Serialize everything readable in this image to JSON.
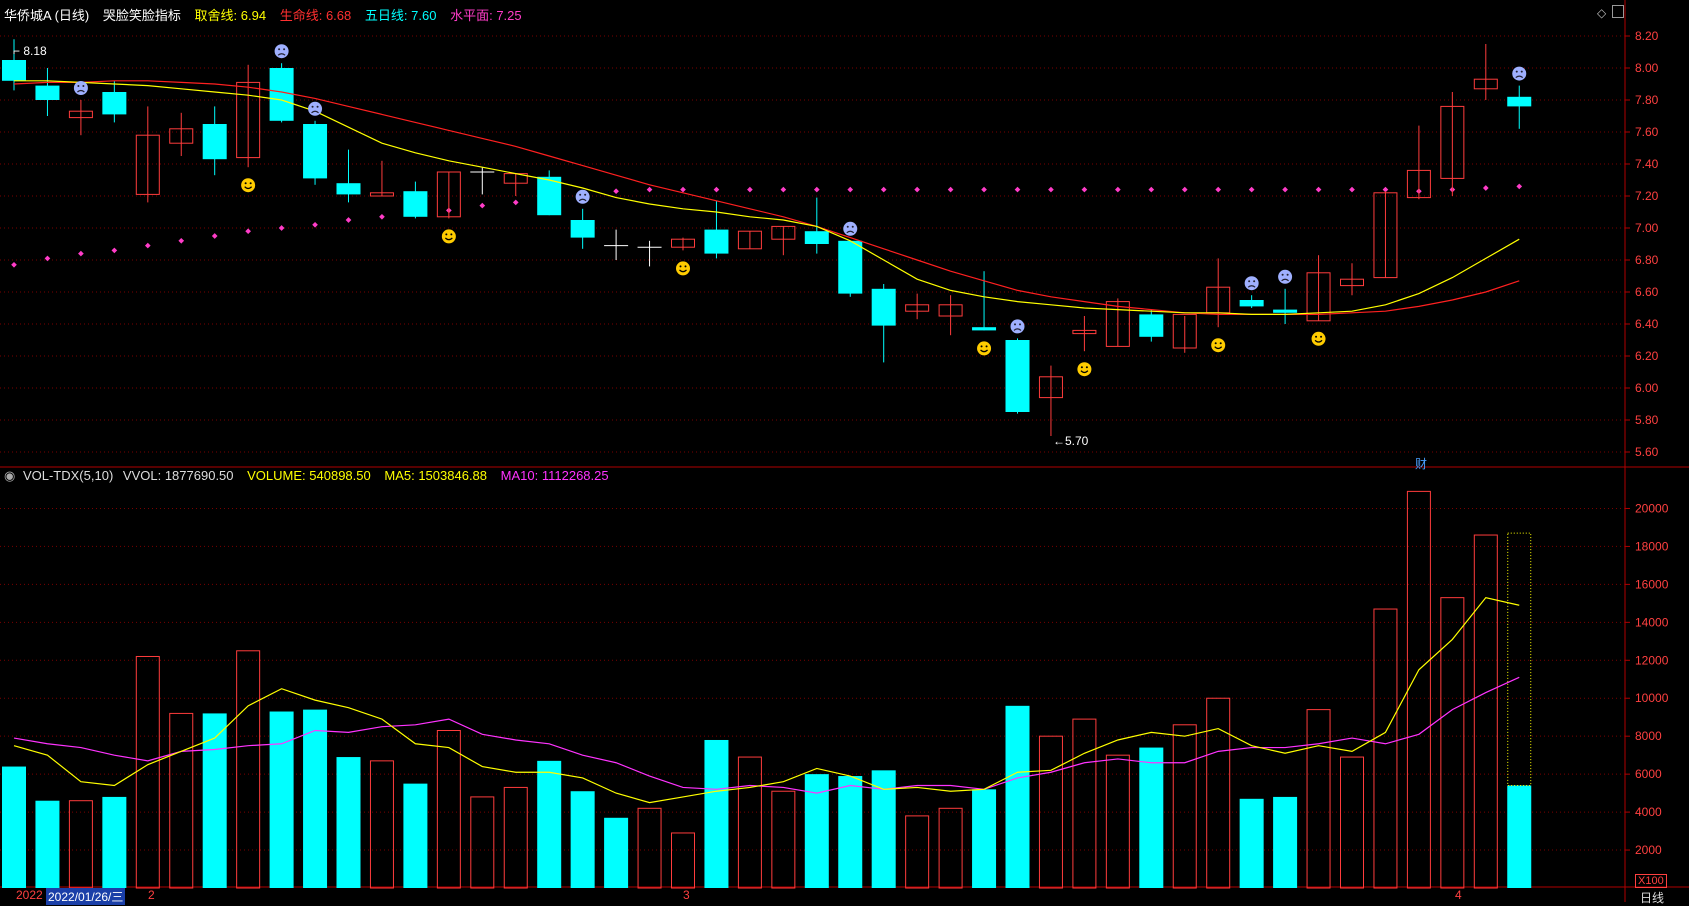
{
  "header": {
    "title": "华侨城A (日线)",
    "indicator_name": "哭脸笑脸指标",
    "qu_she_label": "取舍线:",
    "qu_she_value": "6.94",
    "sheng_ming_label": "生命线:",
    "sheng_ming_value": "6.68",
    "wu_ri_label": "五日线:",
    "wu_ri_value": "7.60",
    "shui_ping_label": "水平面:",
    "shui_ping_value": "7.25"
  },
  "vol_header": {
    "name": "VOL-TDX(5,10)",
    "vvol_label": "VVOL:",
    "vvol_value": "1877690.50",
    "volume_label": "VOLUME:",
    "volume_value": "540898.50",
    "ma5_label": "MA5:",
    "ma5_value": "1503846.88",
    "ma10_label": "MA10:",
    "ma10_value": "1112268.25"
  },
  "annotations": {
    "high_label": "8.18",
    "low_label": "←5.70",
    "cai_badge": "财",
    "x100_badge": "X100",
    "period_label": "日线"
  },
  "date_strip": {
    "start_text": "2022",
    "cursor_date": "2022/01/26/三",
    "month_2": "2",
    "month_3": "3",
    "month_4": "4"
  },
  "colors": {
    "up": "#ff3c3c",
    "down": "#00ffff",
    "ma_yellow": "#ffff00",
    "ma_red": "#ff2020",
    "dots": "#ff3cc8",
    "ma10_vol": "#ff33ff",
    "grid": "#7a0000"
  },
  "chart_data": [
    {
      "type": "candlestick",
      "ylim": [
        5.5,
        8.3
      ],
      "y_ticks": [
        "8.20",
        "8.00",
        "7.80",
        "7.60",
        "7.40",
        "7.20",
        "7.00",
        "6.80",
        "6.60",
        "6.40",
        "6.20",
        "6.00",
        "5.80",
        "5.60"
      ],
      "candles": [
        {
          "o": 8.05,
          "h": 8.18,
          "l": 7.86,
          "c": 7.92
        },
        {
          "o": 7.89,
          "h": 8.0,
          "l": 7.7,
          "c": 7.8
        },
        {
          "o": 7.69,
          "h": 7.8,
          "l": 7.58,
          "c": 7.73
        },
        {
          "o": 7.85,
          "h": 7.92,
          "l": 7.66,
          "c": 7.71
        },
        {
          "o": 7.21,
          "h": 7.76,
          "l": 7.16,
          "c": 7.58
        },
        {
          "o": 7.53,
          "h": 7.72,
          "l": 7.45,
          "c": 7.62
        },
        {
          "o": 7.65,
          "h": 7.76,
          "l": 7.33,
          "c": 7.43
        },
        {
          "o": 7.44,
          "h": 8.02,
          "l": 7.38,
          "c": 7.91
        },
        {
          "o": 8.0,
          "h": 8.03,
          "l": 7.66,
          "c": 7.67
        },
        {
          "o": 7.65,
          "h": 7.67,
          "l": 7.27,
          "c": 7.31
        },
        {
          "o": 7.28,
          "h": 7.49,
          "l": 7.16,
          "c": 7.21
        },
        {
          "o": 7.2,
          "h": 7.42,
          "l": 7.2,
          "c": 7.22
        },
        {
          "o": 7.23,
          "h": 7.29,
          "l": 7.06,
          "c": 7.07
        },
        {
          "o": 7.07,
          "h": 7.35,
          "l": 7.06,
          "c": 7.35
        },
        {
          "o": 7.35,
          "h": 7.38,
          "l": 7.21,
          "c": 7.35
        },
        {
          "o": 7.28,
          "h": 7.34,
          "l": 7.2,
          "c": 7.34
        },
        {
          "o": 7.32,
          "h": 7.36,
          "l": 7.08,
          "c": 7.08
        },
        {
          "o": 7.05,
          "h": 7.12,
          "l": 6.87,
          "c": 6.94
        },
        {
          "o": 6.89,
          "h": 6.99,
          "l": 6.8,
          "c": 6.89
        },
        {
          "o": 6.88,
          "h": 6.92,
          "l": 6.76,
          "c": 6.88
        },
        {
          "o": 6.88,
          "h": 6.94,
          "l": 6.86,
          "c": 6.93
        },
        {
          "o": 6.99,
          "h": 7.17,
          "l": 6.81,
          "c": 6.84
        },
        {
          "o": 6.87,
          "h": 6.98,
          "l": 6.87,
          "c": 6.98
        },
        {
          "o": 6.93,
          "h": 7.01,
          "l": 6.83,
          "c": 7.01
        },
        {
          "o": 6.98,
          "h": 7.19,
          "l": 6.84,
          "c": 6.9
        },
        {
          "o": 6.92,
          "h": 6.92,
          "l": 6.57,
          "c": 6.59
        },
        {
          "o": 6.62,
          "h": 6.65,
          "l": 6.16,
          "c": 6.39
        },
        {
          "o": 6.48,
          "h": 6.59,
          "l": 6.43,
          "c": 6.52
        },
        {
          "o": 6.45,
          "h": 6.58,
          "l": 6.33,
          "c": 6.52
        },
        {
          "o": 6.38,
          "h": 6.73,
          "l": 6.36,
          "c": 6.36
        },
        {
          "o": 6.3,
          "h": 6.31,
          "l": 5.84,
          "c": 5.85
        },
        {
          "o": 5.94,
          "h": 6.14,
          "l": 5.7,
          "c": 6.07
        },
        {
          "o": 6.34,
          "h": 6.45,
          "l": 6.23,
          "c": 6.36
        },
        {
          "o": 6.26,
          "h": 6.56,
          "l": 6.26,
          "c": 6.54
        },
        {
          "o": 6.46,
          "h": 6.49,
          "l": 6.29,
          "c": 6.32
        },
        {
          "o": 6.25,
          "h": 6.45,
          "l": 6.22,
          "c": 6.46
        },
        {
          "o": 6.47,
          "h": 6.81,
          "l": 6.38,
          "c": 6.63
        },
        {
          "o": 6.55,
          "h": 6.58,
          "l": 6.5,
          "c": 6.51
        },
        {
          "o": 6.49,
          "h": 6.62,
          "l": 6.4,
          "c": 6.47
        },
        {
          "o": 6.42,
          "h": 6.83,
          "l": 6.42,
          "c": 6.72
        },
        {
          "o": 6.64,
          "h": 6.78,
          "l": 6.58,
          "c": 6.68
        },
        {
          "o": 6.69,
          "h": 7.23,
          "l": 6.69,
          "c": 7.22
        },
        {
          "o": 7.19,
          "h": 7.64,
          "l": 7.18,
          "c": 7.36
        },
        {
          "o": 7.31,
          "h": 7.85,
          "l": 7.2,
          "c": 7.76
        },
        {
          "o": 7.87,
          "h": 8.15,
          "l": 7.8,
          "c": 7.93
        },
        {
          "o": 7.82,
          "h": 7.89,
          "l": 7.62,
          "c": 7.76
        }
      ],
      "ma_yellow": [
        7.92,
        7.92,
        7.91,
        7.9,
        7.89,
        7.87,
        7.85,
        7.83,
        7.8,
        7.73,
        7.63,
        7.53,
        7.47,
        7.42,
        7.38,
        7.34,
        7.3,
        7.25,
        7.19,
        7.15,
        7.12,
        7.1,
        7.07,
        7.05,
        7.01,
        6.92,
        6.8,
        6.68,
        6.61,
        6.57,
        6.54,
        6.52,
        6.5,
        6.49,
        6.48,
        6.47,
        6.47,
        6.46,
        6.46,
        6.47,
        6.48,
        6.52,
        6.59,
        6.69,
        6.81,
        6.93
      ],
      "ma_red": [
        7.9,
        7.91,
        7.91,
        7.92,
        7.92,
        7.91,
        7.9,
        7.88,
        7.85,
        7.81,
        7.76,
        7.71,
        7.66,
        7.61,
        7.56,
        7.51,
        7.45,
        7.39,
        7.33,
        7.27,
        7.22,
        7.17,
        7.12,
        7.07,
        7.01,
        6.94,
        6.87,
        6.8,
        6.73,
        6.67,
        6.61,
        6.57,
        6.54,
        6.51,
        6.49,
        6.47,
        6.46,
        6.46,
        6.46,
        6.46,
        6.47,
        6.48,
        6.51,
        6.55,
        6.6,
        6.67
      ],
      "dots": [
        6.77,
        6.81,
        6.84,
        6.86,
        6.89,
        6.92,
        6.95,
        6.98,
        7.0,
        7.02,
        7.05,
        7.07,
        7.09,
        7.11,
        7.14,
        7.16,
        7.19,
        7.21,
        7.23,
        7.24,
        7.24,
        7.24,
        7.24,
        7.24,
        7.24,
        7.24,
        7.24,
        7.24,
        7.24,
        7.24,
        7.24,
        7.24,
        7.24,
        7.24,
        7.24,
        7.24,
        7.24,
        7.24,
        7.24,
        7.24,
        7.24,
        7.24,
        7.23,
        7.24,
        7.25,
        7.26
      ],
      "smile_days": [
        7,
        13,
        20,
        29,
        32,
        36,
        39
      ],
      "sad_days": [
        2,
        8,
        9,
        17,
        25,
        30,
        37,
        38,
        45
      ]
    },
    {
      "type": "bar",
      "ylim": [
        0,
        21500
      ],
      "y_ticks": [
        "20000",
        "18000",
        "16000",
        "14000",
        "12000",
        "10000",
        "8000",
        "6000",
        "4000",
        "2000"
      ],
      "volume": [
        6400,
        4600,
        4600,
        4800,
        12200,
        9200,
        9200,
        12500,
        9300,
        9400,
        6900,
        6700,
        5500,
        8300,
        4800,
        5300,
        6700,
        5100,
        3700,
        4200,
        2900,
        7800,
        6900,
        5100,
        6000,
        5900,
        6200,
        3800,
        4200,
        5200,
        9600,
        8000,
        8900,
        7000,
        7400,
        8600,
        10000,
        4700,
        4800,
        9400,
        6900,
        14700,
        20900,
        15300,
        18600,
        5400
      ],
      "vol_up": [
        false,
        false,
        true,
        false,
        true,
        true,
        false,
        true,
        false,
        false,
        false,
        true,
        false,
        true,
        true,
        true,
        false,
        false,
        false,
        true,
        true,
        false,
        true,
        true,
        false,
        false,
        false,
        true,
        true,
        false,
        false,
        true,
        true,
        true,
        false,
        true,
        true,
        false,
        false,
        true,
        true,
        true,
        true,
        true,
        true,
        false
      ],
      "ma5": [
        7500,
        7000,
        5600,
        5400,
        6500,
        7200,
        7900,
        9600,
        10500,
        9900,
        9500,
        8900,
        7600,
        7400,
        6400,
        6100,
        6100,
        5800,
        5000,
        4500,
        4800,
        5100,
        5300,
        5600,
        6300,
        5900,
        5200,
        5300,
        5100,
        5200,
        6100,
        6200,
        7100,
        7800,
        8200,
        8000,
        8400,
        7500,
        7100,
        7500,
        7200,
        8200,
        11500,
        13100,
        15300,
        14900
      ],
      "ma10": [
        7900,
        7600,
        7400,
        7000,
        6700,
        7200,
        7300,
        7500,
        7600,
        8300,
        8200,
        8500,
        8600,
        8900,
        8100,
        7800,
        7600,
        7000,
        6600,
        5900,
        5300,
        5200,
        5400,
        5300,
        5000,
        5400,
        5200,
        5400,
        5400,
        5200,
        5800,
        6100,
        6600,
        6800,
        6600,
        6600,
        7200,
        7400,
        7400,
        7600,
        7900,
        7600,
        8100,
        9400,
        10300,
        11100
      ],
      "projected_total": 18700
    }
  ]
}
